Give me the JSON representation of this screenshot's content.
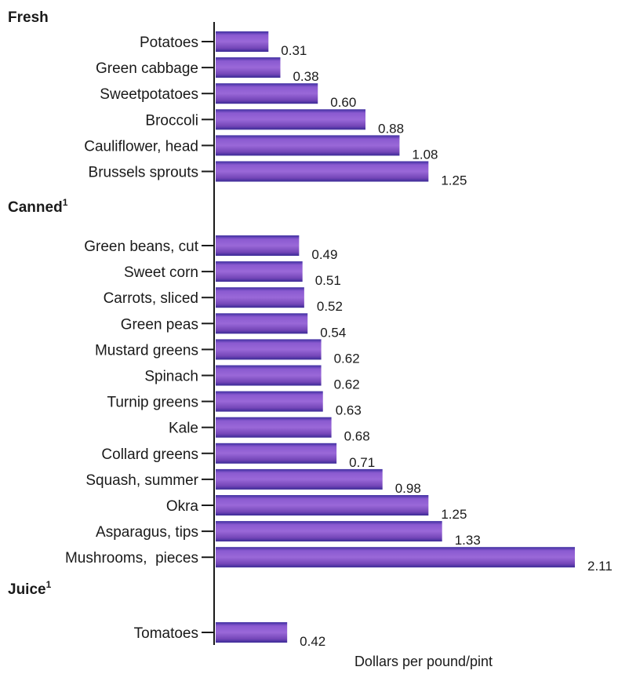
{
  "chart_data": {
    "type": "bar",
    "orientation": "horizontal",
    "xlabel": "Dollars per pound/pint",
    "ylabel": "",
    "xlim": [
      0,
      2.25
    ],
    "grid": false,
    "legend": "none",
    "bar_color": "#7f4fc0",
    "groups": [
      {
        "name": "Fresh",
        "superscript": "",
        "categories": [
          "Potatoes",
          "Green cabbage",
          "Sweetpotatoes",
          "Broccoli",
          "Cauliflower, head",
          "Brussels sprouts"
        ],
        "values": [
          0.31,
          0.38,
          0.6,
          0.88,
          1.08,
          1.25
        ],
        "value_labels": [
          "0.31",
          "0.38",
          "0.60",
          "0.88",
          "1.08",
          "1.25"
        ]
      },
      {
        "name": "Canned",
        "superscript": "1",
        "categories": [
          "Green beans, cut",
          "Sweet corn",
          "Carrots, sliced",
          "Green peas",
          "Mustard greens",
          "Spinach",
          "Turnip greens",
          "Kale",
          "Collard greens",
          "Squash, summer",
          "Okra",
          "Asparagus, tips",
          "Mushrooms,  pieces"
        ],
        "values": [
          0.49,
          0.51,
          0.52,
          0.54,
          0.62,
          0.62,
          0.63,
          0.68,
          0.71,
          0.98,
          1.25,
          1.33,
          2.11
        ],
        "value_labels": [
          "0.49",
          "0.51",
          "0.52",
          "0.54",
          "0.62",
          "0.62",
          "0.63",
          "0.68",
          "0.71",
          "0.98",
          "1.25",
          "1.33",
          "2.11"
        ]
      },
      {
        "name": "Juice",
        "superscript": "1",
        "categories": [
          "Tomatoes"
        ],
        "values": [
          0.42
        ],
        "value_labels": [
          "0.42"
        ]
      }
    ]
  }
}
